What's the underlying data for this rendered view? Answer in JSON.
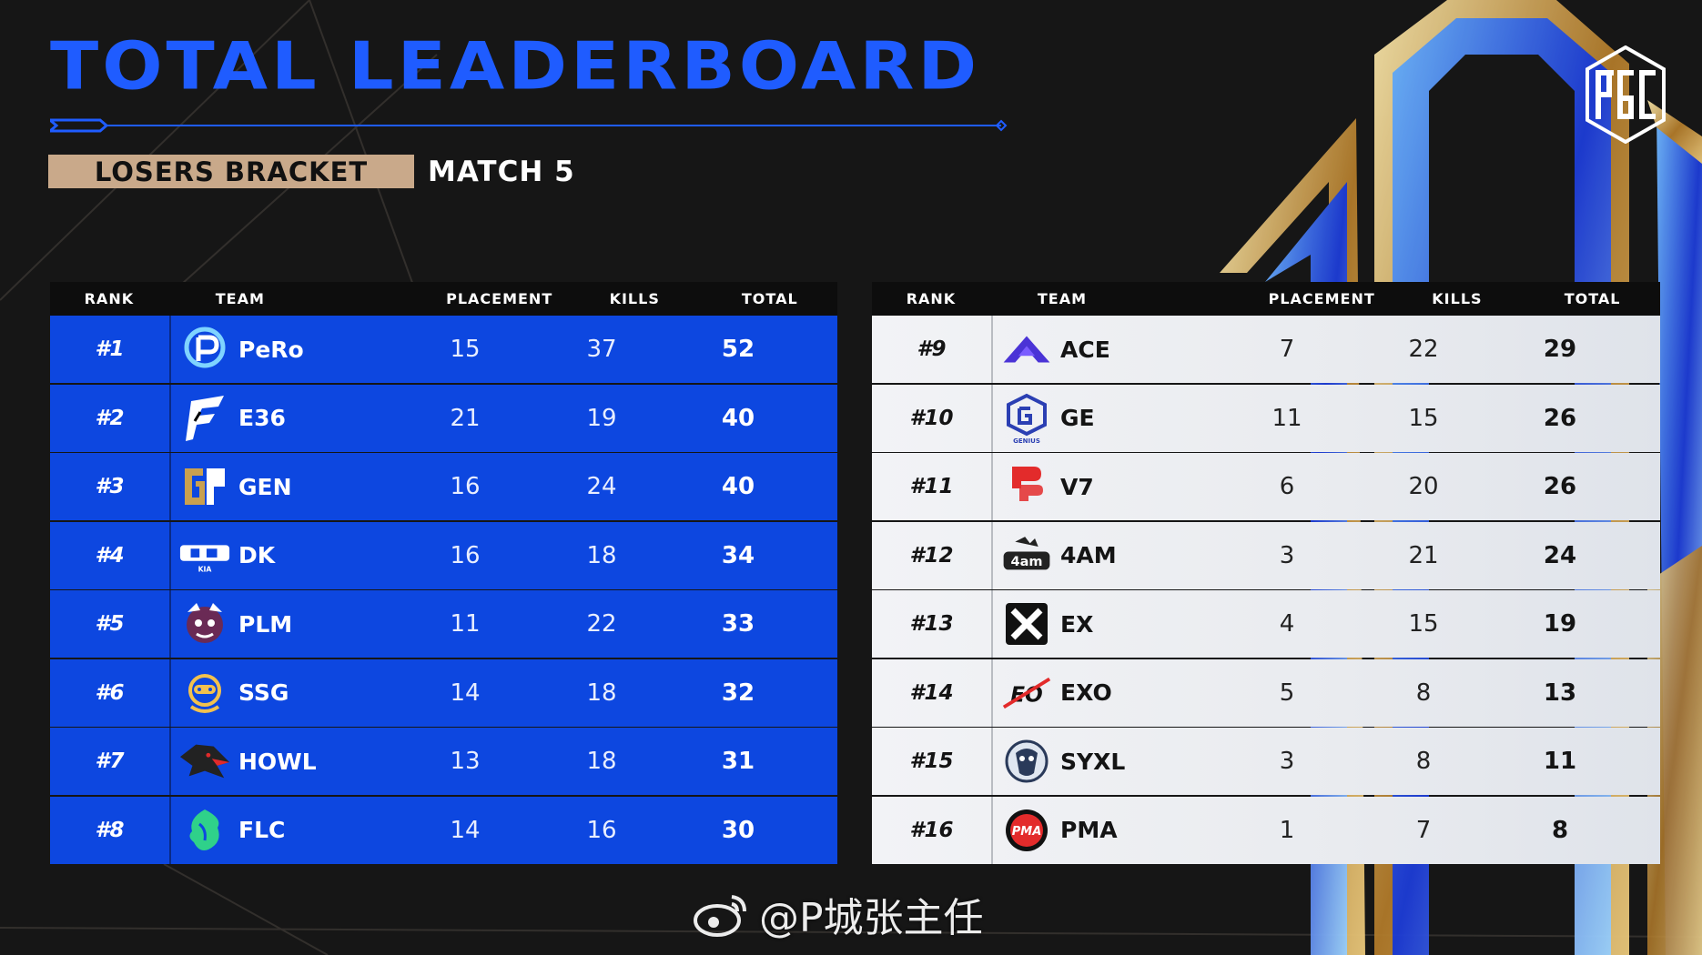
{
  "header": {
    "title": "TOTAL LEADERBOARD",
    "bracket": "LOSERS BRACKET",
    "match": "MATCH 5",
    "brand_logo": "pgc-logo"
  },
  "columns": {
    "rank": "RANK",
    "team": "TEAM",
    "placement": "PLACEMENT",
    "kills": "KILLS",
    "total": "TOTAL"
  },
  "left_table": [
    {
      "rank": "#1",
      "team": "PeRo",
      "placement": "15",
      "kills": "37",
      "total": "52",
      "logo": "pero-logo"
    },
    {
      "rank": "#2",
      "team": "E36",
      "placement": "21",
      "kills": "19",
      "total": "40",
      "logo": "e36-logo"
    },
    {
      "rank": "#3",
      "team": "GEN",
      "placement": "16",
      "kills": "24",
      "total": "40",
      "logo": "gen-logo"
    },
    {
      "rank": "#4",
      "team": "DK",
      "placement": "16",
      "kills": "18",
      "total": "34",
      "logo": "dk-logo"
    },
    {
      "rank": "#5",
      "team": "PLM",
      "placement": "11",
      "kills": "22",
      "total": "33",
      "logo": "plm-logo"
    },
    {
      "rank": "#6",
      "team": "SSG",
      "placement": "14",
      "kills": "18",
      "total": "32",
      "logo": "ssg-logo"
    },
    {
      "rank": "#7",
      "team": "HOWL",
      "placement": "13",
      "kills": "18",
      "total": "31",
      "logo": "howl-logo"
    },
    {
      "rank": "#8",
      "team": "FLC",
      "placement": "14",
      "kills": "16",
      "total": "30",
      "logo": "flc-logo"
    }
  ],
  "right_table": [
    {
      "rank": "#9",
      "team": "ACE",
      "placement": "7",
      "kills": "22",
      "total": "29",
      "logo": "ace-logo"
    },
    {
      "rank": "#10",
      "team": "GE",
      "placement": "11",
      "kills": "15",
      "total": "26",
      "logo": "ge-logo"
    },
    {
      "rank": "#11",
      "team": "V7",
      "placement": "6",
      "kills": "20",
      "total": "26",
      "logo": "v7-logo"
    },
    {
      "rank": "#12",
      "team": "4AM",
      "placement": "3",
      "kills": "21",
      "total": "24",
      "logo": "4am-logo"
    },
    {
      "rank": "#13",
      "team": "EX",
      "placement": "4",
      "kills": "15",
      "total": "19",
      "logo": "ex-logo"
    },
    {
      "rank": "#14",
      "team": "EXO",
      "placement": "5",
      "kills": "8",
      "total": "13",
      "logo": "exo-logo"
    },
    {
      "rank": "#15",
      "team": "SYXL",
      "placement": "3",
      "kills": "8",
      "total": "11",
      "logo": "syxl-logo"
    },
    {
      "rank": "#16",
      "team": "PMA",
      "placement": "1",
      "kills": "7",
      "total": "8",
      "logo": "pma-logo"
    }
  ],
  "watermark": "@P城张主任",
  "colors": {
    "accent_blue": "#1f5cff",
    "left_row": "#0d47e0",
    "tag_bg": "#c9a98a",
    "bg": "#161616"
  }
}
